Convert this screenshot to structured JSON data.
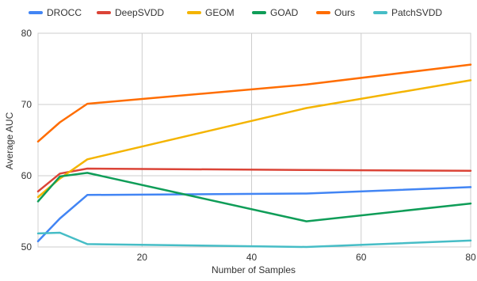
{
  "chart_data": {
    "type": "line",
    "title": "",
    "xlabel": "Number of Samples",
    "ylabel": "Average AUC",
    "x": [
      1,
      5,
      10,
      50,
      80
    ],
    "xlim": [
      1,
      80
    ],
    "ylim": [
      50,
      80
    ],
    "xticks": [
      20,
      40,
      60,
      80
    ],
    "yticks": [
      50,
      60,
      70,
      80
    ],
    "grid": true,
    "legend_position": "top",
    "series": [
      {
        "name": "DROCC",
        "color": "#4285F4",
        "values": [
          50.8,
          54.0,
          57.3,
          57.5,
          58.4
        ]
      },
      {
        "name": "DeepSVDD",
        "color": "#DB4437",
        "values": [
          57.8,
          60.3,
          61.0,
          60.8,
          60.7
        ]
      },
      {
        "name": "GEOM",
        "color": "#F4B400",
        "values": [
          57.0,
          59.6,
          62.3,
          69.5,
          73.4
        ]
      },
      {
        "name": "GOAD",
        "color": "#0F9D58",
        "values": [
          56.4,
          59.9,
          60.4,
          53.6,
          56.1
        ]
      },
      {
        "name": "Ours",
        "color": "#FF6D01",
        "values": [
          64.8,
          67.5,
          70.1,
          72.8,
          75.6
        ]
      },
      {
        "name": "PatchSVDD",
        "color": "#46BDC6",
        "values": [
          51.9,
          52.0,
          50.4,
          50.0,
          50.9
        ]
      }
    ]
  }
}
